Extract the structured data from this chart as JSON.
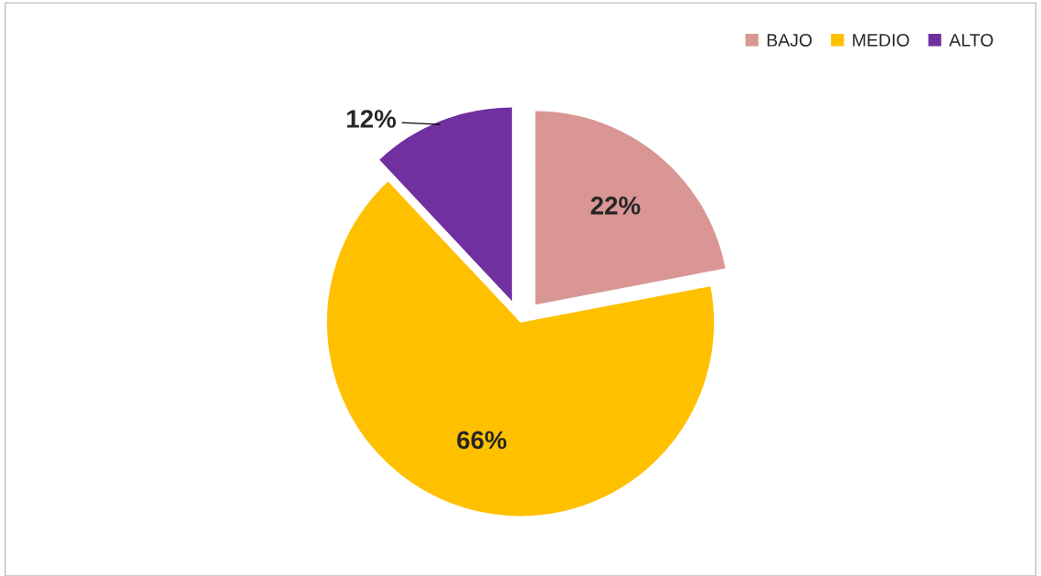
{
  "chart_data": {
    "type": "pie",
    "categories": [
      "BAJO",
      "MEDIO",
      "ALTO"
    ],
    "values": [
      22,
      66,
      12
    ],
    "colors": [
      "#d99694",
      "#ffc000",
      "#7030a0"
    ],
    "value_labels": [
      "22%",
      "66%",
      "12%"
    ],
    "legend": "top right"
  }
}
